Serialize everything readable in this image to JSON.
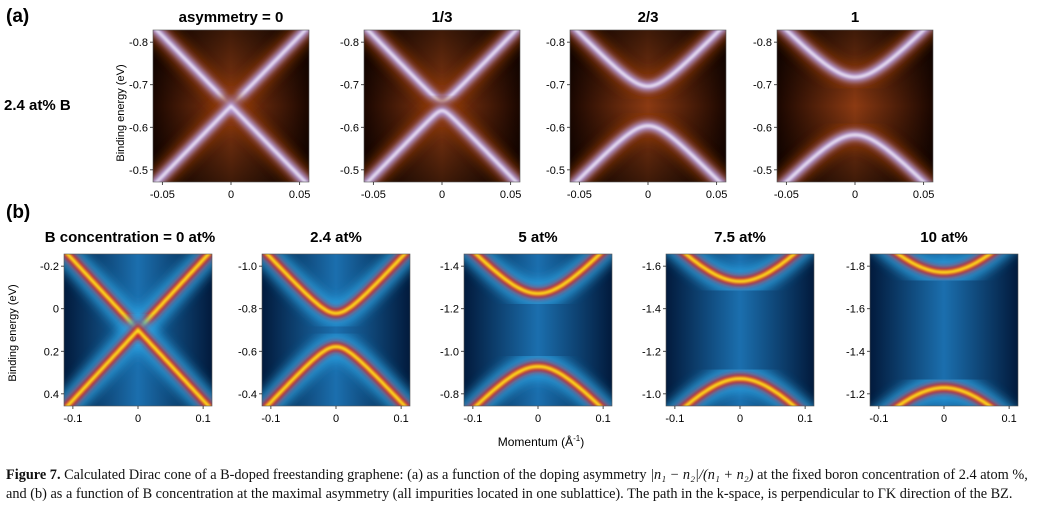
{
  "panel_a": {
    "label": "(a)",
    "row_label": "2.4 at% B",
    "ylabel": "Binding energy (eV)",
    "titles": [
      "asymmetry = 0",
      "1/3",
      "2/3",
      "1"
    ],
    "yticks": [
      "-0.8",
      "-0.7",
      "-0.6",
      "-0.5"
    ],
    "xticks": [
      "-0.05",
      "0",
      "0.05"
    ]
  },
  "panel_b": {
    "label": "(b)",
    "ylabel": "Binding energy (eV)",
    "xlabel": "Momentum (Å",
    "xlabel_sup": "-1",
    "xlabel_close": ")",
    "titles": [
      "B concentration = 0 at%",
      "2.4 at%",
      "5 at%",
      "7.5 at%",
      "10 at%"
    ],
    "yticks": [
      [
        "-0.2",
        "0",
        "0.2",
        "0.4"
      ],
      [
        "-1.0",
        "-0.8",
        "-0.6",
        "-0.4"
      ],
      [
        "-1.4",
        "-1.2",
        "-1.0",
        "-0.8"
      ],
      [
        "-1.6",
        "-1.4",
        "-1.2",
        "-1.0"
      ],
      [
        "-1.8",
        "-1.6",
        "-1.4",
        "-1.2"
      ]
    ],
    "xticks": [
      "-0.1",
      "0",
      "0.1"
    ]
  },
  "caption": {
    "label": "Figure 7.",
    "part1": " Calculated Dirac cone of a B-doped freestanding graphene: (a) as a function of the doping asymmetry ",
    "formula": "|n₁ − n₂|/(n₁ + n₂)",
    "part2": " at the fixed boron concentration of 2.4 atom %, and (b) as a function of B concentration at the maximal asymmetry (all impurities located in one sublattice). The path in the k-space, is perpendicular to ΓK direction of the BZ."
  },
  "colors": {
    "a_background": "#000000",
    "a_mid": "#8c3710",
    "a_band": "#b8a4f2",
    "a_peak": "#ffffff",
    "b_background": "#05244f",
    "b_mid": "#2aa6e6",
    "b_band": "#d6191f",
    "b_peak": "#ffe81a"
  }
}
